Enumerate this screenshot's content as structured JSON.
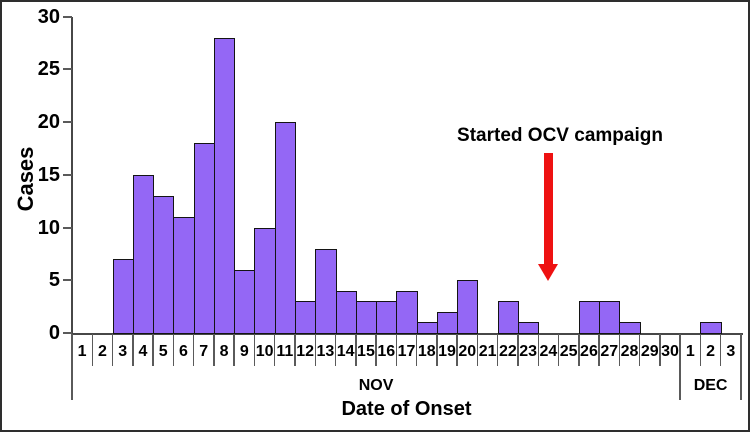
{
  "figure": {
    "colors": {
      "bar": "#9467F5",
      "bar_border": "#141414",
      "axis": "#474747",
      "arrow": "#EE1111",
      "text": "#000000",
      "background": "#ffffff"
    }
  },
  "chart_data": {
    "type": "bar",
    "title": "",
    "xlabel": "Date of Onset",
    "ylabel": "Cases",
    "ylim": [
      0,
      30
    ],
    "yticks": [
      0,
      5,
      10,
      15,
      20,
      25,
      30
    ],
    "grid": "off",
    "categories": [
      "1",
      "2",
      "3",
      "4",
      "5",
      "6",
      "7",
      "8",
      "9",
      "10",
      "11",
      "12",
      "13",
      "14",
      "15",
      "16",
      "17",
      "18",
      "19",
      "20",
      "21",
      "22",
      "23",
      "24",
      "25",
      "26",
      "27",
      "28",
      "29",
      "30",
      "1",
      "2",
      "3"
    ],
    "values": [
      0,
      0,
      7,
      15,
      13,
      11,
      18,
      28,
      6,
      10,
      20,
      3,
      8,
      4,
      3,
      3,
      4,
      1,
      2,
      5,
      0,
      3,
      1,
      0,
      0,
      3,
      3,
      1,
      0,
      0,
      0,
      1,
      0
    ],
    "month_groups": [
      {
        "label": "NOV",
        "start": 0,
        "count": 30
      },
      {
        "label": "DEC",
        "start": 30,
        "count": 3
      }
    ],
    "annotation": {
      "text": "Started OCV campaign",
      "arrow_points_to": {
        "month": "NOV",
        "day": "24"
      },
      "arrow_category_index": 23
    }
  }
}
